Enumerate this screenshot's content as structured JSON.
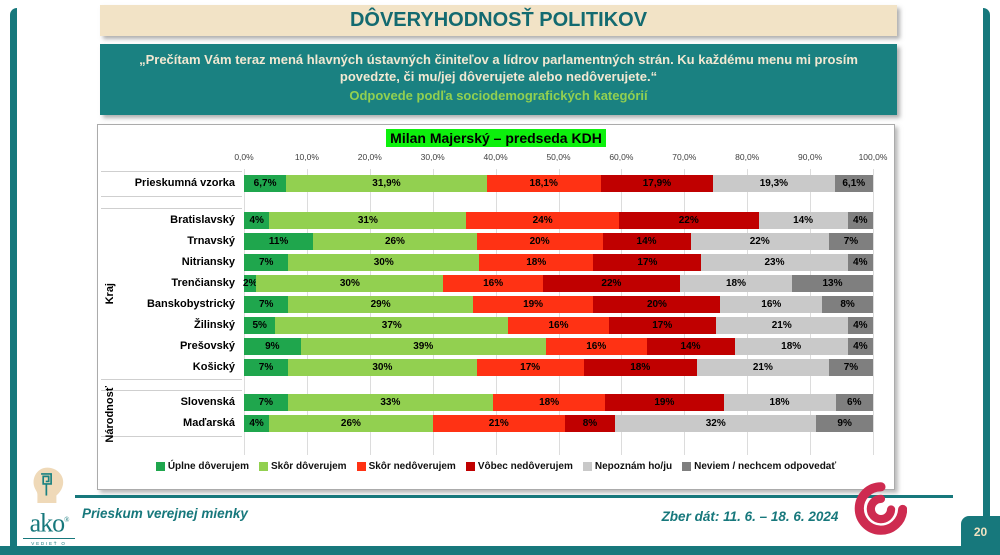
{
  "page": {
    "page_number": "20"
  },
  "colors": {
    "teal_frame": "#17787C",
    "banner_teal": "#1A8181",
    "cream": "#F2E3C6",
    "title_text": "#136A70",
    "subtitle_green": "#92D050",
    "title_highlight": "#0DF00D",
    "crimson_logo": "#CE2B50"
  },
  "header": {
    "title": "DÔVERYHODNOSŤ POLITIKOV"
  },
  "banner": {
    "quote": "„Prečítam Vám teraz mená hlavných ústavných činiteľov a lídrov parlamentných strán. Ku každému menu mi prosím povedzte, či mu/jej dôverujete alebo nedôverujete.“",
    "subtitle": "Odpovede podľa sociodemografických kategórií"
  },
  "chart_data": {
    "type": "bar",
    "stacked": true,
    "orientation": "horizontal",
    "title": "Milan Majerský – predseda KDH",
    "xlim": [
      0,
      100
    ],
    "x_ticks": [
      "0,0%",
      "10,0%",
      "20,0%",
      "30,0%",
      "40,0%",
      "50,0%",
      "60,0%",
      "70,0%",
      "80,0%",
      "90,0%",
      "100,0%"
    ],
    "grid": true,
    "legend_position": "bottom",
    "series_names": [
      "Úplne dôverujem",
      "Skôr dôverujem",
      "Skôr nedôverujem",
      "Vôbec nedôverujem",
      "Nepoznám ho/ju",
      "Neviem / nechcem odpovedať"
    ],
    "palette": [
      "#1FA64D",
      "#92D050",
      "#FF3214",
      "#C00000",
      "#C9C9C9",
      "#7F7F7F"
    ],
    "groups": [
      "Kraj",
      "Národnosť"
    ],
    "rows": [
      {
        "label": "Prieskumná vzorka",
        "group": "",
        "values": [
          6.7,
          31.9,
          18.1,
          17.9,
          19.3,
          6.1
        ],
        "display": [
          "6,7%",
          "31,9%",
          "18,1%",
          "17,9%",
          "19,3%",
          "6,1%"
        ]
      },
      {
        "label": "Bratislavský",
        "group": "Kraj",
        "values": [
          4,
          31,
          24,
          22,
          14,
          4
        ],
        "display": [
          "4%",
          "31%",
          "24%",
          "22%",
          "14%",
          "4%"
        ]
      },
      {
        "label": "Trnavský",
        "group": "Kraj",
        "values": [
          11,
          26,
          20,
          14,
          22,
          7
        ],
        "display": [
          "11%",
          "26%",
          "20%",
          "14%",
          "22%",
          "7%"
        ]
      },
      {
        "label": "Nitriansky",
        "group": "Kraj",
        "values": [
          7,
          30,
          18,
          17,
          23,
          4
        ],
        "display": [
          "7%",
          "30%",
          "18%",
          "17%",
          "23%",
          "4%"
        ]
      },
      {
        "label": "Trenčiansky",
        "group": "Kraj",
        "values": [
          2,
          30,
          16,
          22,
          18,
          13
        ],
        "display": [
          "2%",
          "30%",
          "16%",
          "22%",
          "18%",
          "13%"
        ]
      },
      {
        "label": "Banskobystrický",
        "group": "Kraj",
        "values": [
          7,
          29,
          19,
          20,
          16,
          8
        ],
        "display": [
          "7%",
          "29%",
          "19%",
          "20%",
          "16%",
          "8%"
        ]
      },
      {
        "label": "Žilinský",
        "group": "Kraj",
        "values": [
          5,
          37,
          16,
          17,
          21,
          4
        ],
        "display": [
          "5%",
          "37%",
          "16%",
          "17%",
          "21%",
          "4%"
        ]
      },
      {
        "label": "Prešovský",
        "group": "Kraj",
        "values": [
          9,
          39,
          16,
          14,
          18,
          4
        ],
        "display": [
          "9%",
          "39%",
          "16%",
          "14%",
          "18%",
          "4%"
        ]
      },
      {
        "label": "Košický",
        "group": "Kraj",
        "values": [
          7,
          30,
          17,
          18,
          21,
          7
        ],
        "display": [
          "7%",
          "30%",
          "17%",
          "18%",
          "21%",
          "7%"
        ]
      },
      {
        "label": "Slovenská",
        "group": "Národnosť",
        "values": [
          7,
          33,
          18,
          19,
          18,
          6
        ],
        "display": [
          "7%",
          "33%",
          "18%",
          "19%",
          "18%",
          "6%"
        ]
      },
      {
        "label": "Maďarská",
        "group": "Národnosť",
        "values": [
          4,
          26,
          21,
          8,
          32,
          9
        ],
        "display": [
          "4%",
          "26%",
          "21%",
          "8%",
          "32%",
          "9%"
        ]
      }
    ]
  },
  "footer": {
    "brand": "ako",
    "brand_reg": "®",
    "brand_tagline": "VEDIEŤ O SEBE",
    "left_text": "Prieskum verejnej mienky",
    "right_text": "Zber dát: 11. 6. – 18. 6. 2024"
  }
}
